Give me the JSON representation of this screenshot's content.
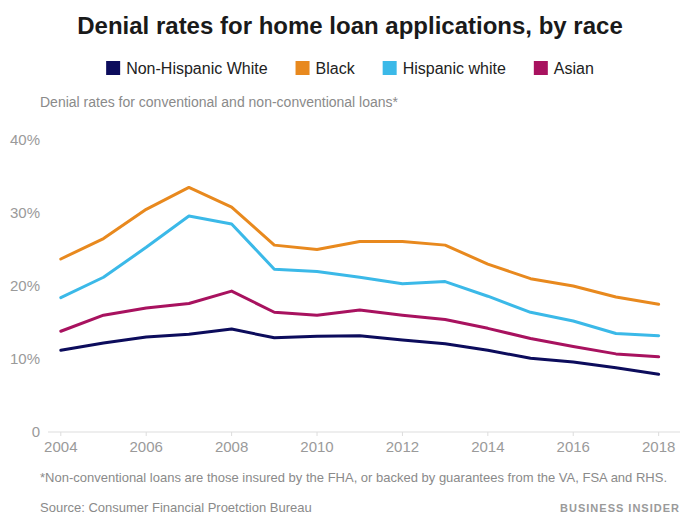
{
  "chart_data": {
    "type": "line",
    "title": "Denial rates for home loan applications, by race",
    "subtitle": "Denial rates for conventional and non-conventional loans*",
    "footnote": "*Non-conventional loans are those insured by the FHA, or backed by guarantees from the VA, FSA and RHS.",
    "source": "Source: Consumer Financial Proetction Bureau",
    "credit": "BUSINESS INSIDER",
    "legend": "top",
    "grid": false,
    "x": [
      2004,
      2005,
      2006,
      2007,
      2008,
      2009,
      2010,
      2011,
      2012,
      2013,
      2014,
      2015,
      2016,
      2017,
      2018
    ],
    "xlim": [
      2003.7,
      2018.5
    ],
    "xticks": [
      2004,
      2006,
      2008,
      2010,
      2012,
      2014,
      2016,
      2018
    ],
    "ylim": [
      0,
      40
    ],
    "yticks": [
      0,
      {
        "value": 10,
        "label": "10%"
      },
      {
        "value": 20,
        "label": "20%"
      },
      {
        "value": 30,
        "label": "30%"
      },
      {
        "value": 40,
        "label": "40%"
      }
    ],
    "series": [
      {
        "name": "Non-Hispanic White",
        "color": "#0c0c5c",
        "values": [
          11.2,
          12.2,
          13.0,
          13.4,
          14.1,
          12.9,
          13.1,
          13.2,
          12.6,
          12.1,
          11.2,
          10.1,
          9.6,
          8.8,
          7.9
        ]
      },
      {
        "name": "Black",
        "color": "#e8891e",
        "values": [
          23.7,
          26.5,
          30.5,
          33.5,
          30.8,
          25.6,
          25.0,
          26.1,
          26.1,
          25.6,
          23.0,
          21.0,
          20.0,
          18.5,
          17.5
        ]
      },
      {
        "name": "Hispanic white",
        "color": "#3bb9e8",
        "values": [
          18.4,
          21.2,
          25.3,
          29.6,
          28.5,
          22.3,
          22.0,
          21.2,
          20.3,
          20.6,
          18.6,
          16.4,
          15.2,
          13.5,
          13.2
        ]
      },
      {
        "name": "Asian",
        "color": "#a8125f",
        "values": [
          13.8,
          16.0,
          17.0,
          17.6,
          19.3,
          16.4,
          16.0,
          16.7,
          16.0,
          15.4,
          14.2,
          12.8,
          11.7,
          10.7,
          10.3
        ]
      }
    ]
  }
}
